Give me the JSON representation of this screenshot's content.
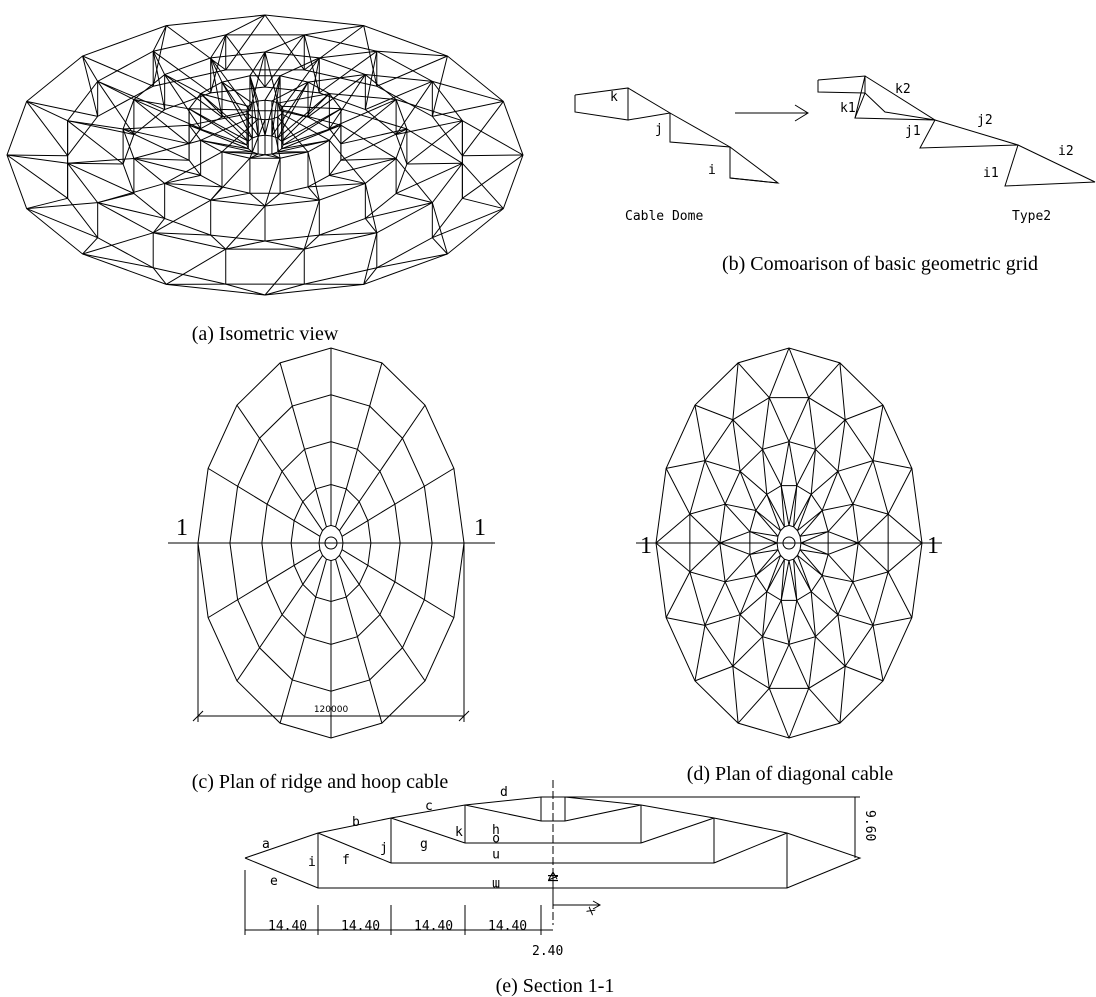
{
  "captions": {
    "a": "(a) Isometric view",
    "b": "(b) Comoarison of basic geometric grid",
    "c": "(c) Plan of ridge and hoop cable",
    "d": "(d) Plan of diagonal cable",
    "e": "(e) Section 1-1"
  },
  "grid_b": {
    "left": {
      "labels": [
        "k",
        "j",
        "i"
      ],
      "name": "Cable Dome"
    },
    "right": {
      "labels": [
        "k1",
        "k2",
        "j1",
        "j2",
        "i1",
        "i2"
      ],
      "name": "Type2"
    }
  },
  "plan_c": {
    "section_marks": [
      "1",
      "1"
    ],
    "dimension": "120000"
  },
  "plan_d": {
    "section_marks": [
      "1",
      "1"
    ]
  },
  "section_e": {
    "members": [
      "a",
      "b",
      "c",
      "d",
      "e",
      "f",
      "g",
      "h",
      "i",
      "j",
      "k",
      "o",
      "n",
      "m"
    ],
    "axes": [
      "N",
      "x"
    ],
    "spans": [
      "14.40",
      "14.40",
      "14.40",
      "14.40"
    ],
    "center_offset": "2.40",
    "height": "9.60"
  }
}
